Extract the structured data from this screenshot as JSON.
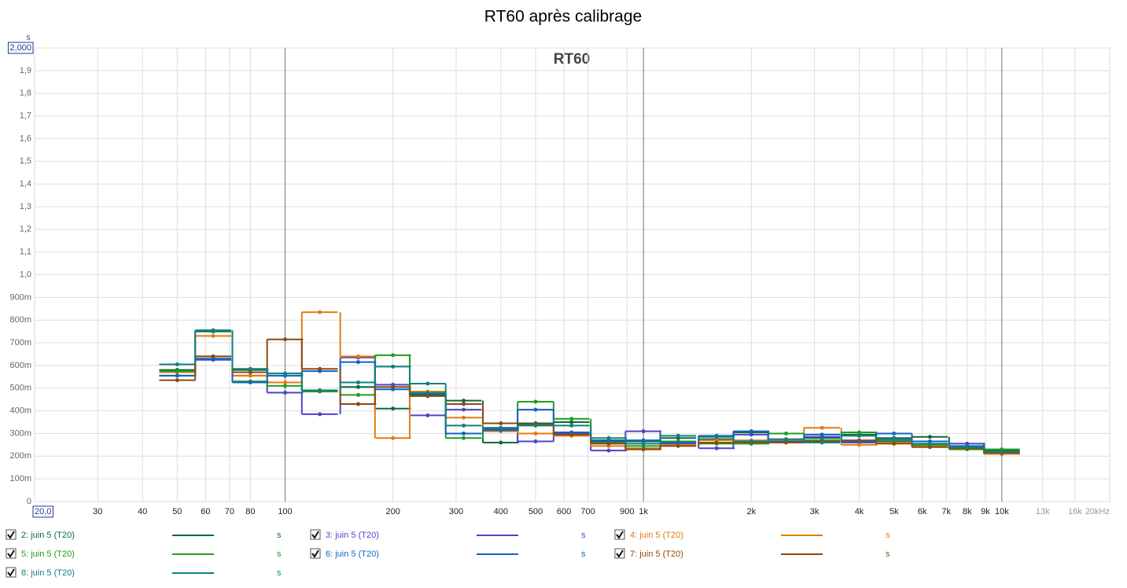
{
  "chart_data": {
    "type": "step-line",
    "title": "RT60 après calibrage",
    "subtitle": "RT60",
    "y_unit": "s",
    "x": [
      50,
      63,
      80,
      100,
      125,
      160,
      200,
      250,
      315,
      400,
      500,
      630,
      800,
      1000,
      1250,
      1600,
      2000,
      2500,
      3150,
      4000,
      5000,
      6300,
      8000,
      10000
    ],
    "xscale": "log",
    "xlim": [
      20,
      20000
    ],
    "xticks": [
      {
        "value": 20,
        "label": "20,0"
      },
      30,
      40,
      50,
      60,
      70,
      80,
      100,
      200,
      300,
      400,
      500,
      600,
      700,
      900,
      {
        "value": 1000,
        "label": "1k"
      },
      {
        "value": 2000,
        "label": "2k"
      },
      {
        "value": 3000,
        "label": "3k"
      },
      {
        "value": 4000,
        "label": "4k"
      },
      {
        "value": 5000,
        "label": "5k"
      },
      {
        "value": 6000,
        "label": "6k"
      },
      {
        "value": 7000,
        "label": "7k"
      },
      {
        "value": 8000,
        "label": "8k"
      },
      {
        "value": 9000,
        "label": "9k"
      },
      {
        "value": 10000,
        "label": "10k"
      },
      {
        "value": 13000,
        "label": "13k"
      },
      {
        "value": 16000,
        "label": "16k"
      },
      {
        "value": 20000,
        "label": "20kHz"
      }
    ],
    "ylim": [
      0,
      2
    ],
    "yticks": [
      0,
      {
        "value": 0.1,
        "label": "100m"
      },
      {
        "value": 0.2,
        "label": "200m"
      },
      {
        "value": 0.3,
        "label": "300m"
      },
      {
        "value": 0.4,
        "label": "400m"
      },
      {
        "value": 0.5,
        "label": "500m"
      },
      {
        "value": 0.6,
        "label": "600m"
      },
      {
        "value": 0.7,
        "label": "700m"
      },
      {
        "value": 0.8,
        "label": "800m"
      },
      {
        "value": 0.9,
        "label": "900m"
      },
      {
        "value": 1.0,
        "label": "1,0"
      },
      {
        "value": 1.1,
        "label": "1,1"
      },
      {
        "value": 1.2,
        "label": "1,2"
      },
      {
        "value": 1.3,
        "label": "1,3"
      },
      {
        "value": 1.4,
        "label": "1,4"
      },
      {
        "value": 1.5,
        "label": "1,5"
      },
      {
        "value": 1.6,
        "label": "1,6"
      },
      {
        "value": 1.7,
        "label": "1,7"
      },
      {
        "value": 1.8,
        "label": "1,8"
      },
      {
        "value": 1.9,
        "label": "1,9"
      },
      {
        "value": 2.0,
        "label": "2,000"
      }
    ],
    "grid": true,
    "series": [
      {
        "name": "2: juin 5 (T20)",
        "unit": "s",
        "color": "#0d6a3a",
        "values": [
          0.58,
          0.75,
          0.58,
          0.555,
          0.49,
          0.505,
          0.41,
          0.47,
          0.445,
          0.26,
          0.345,
          0.35,
          0.27,
          0.265,
          0.28,
          0.275,
          0.305,
          0.27,
          0.28,
          0.295,
          0.28,
          0.285,
          0.24,
          0.225
        ]
      },
      {
        "name": "3: juin 5 (T20)",
        "unit": "s",
        "color": "#4b45c8",
        "values": [
          0.555,
          0.625,
          0.555,
          0.48,
          0.385,
          0.635,
          0.515,
          0.38,
          0.405,
          0.32,
          0.265,
          0.305,
          0.225,
          0.31,
          0.255,
          0.235,
          0.295,
          0.265,
          0.285,
          0.26,
          0.265,
          0.245,
          0.255,
          0.21
        ]
      },
      {
        "name": "4: juin 5 (T20)",
        "unit": "s",
        "color": "#e37b12",
        "values": [
          0.57,
          0.73,
          0.555,
          0.525,
          0.835,
          0.64,
          0.28,
          0.485,
          0.37,
          0.31,
          0.3,
          0.29,
          0.245,
          0.235,
          0.25,
          0.27,
          0.27,
          0.27,
          0.325,
          0.25,
          0.26,
          0.245,
          0.235,
          0.21
        ]
      },
      {
        "name": "5: juin 5 (T20)",
        "unit": "s",
        "color": "#1f9e1f",
        "values": [
          0.575,
          0.64,
          0.53,
          0.51,
          0.485,
          0.47,
          0.645,
          0.48,
          0.28,
          0.325,
          0.44,
          0.365,
          0.26,
          0.245,
          0.265,
          0.255,
          0.255,
          0.3,
          0.27,
          0.305,
          0.27,
          0.25,
          0.23,
          0.23
        ]
      },
      {
        "name": "6: juin 5 (T20)",
        "unit": "s",
        "color": "#1463c2",
        "values": [
          0.555,
          0.63,
          0.525,
          0.555,
          0.575,
          0.615,
          0.495,
          0.475,
          0.3,
          0.315,
          0.405,
          0.3,
          0.265,
          0.27,
          0.26,
          0.29,
          0.31,
          0.265,
          0.295,
          0.265,
          0.3,
          0.265,
          0.245,
          0.215
        ]
      },
      {
        "name": "7: juin 5 (T20)",
        "unit": "s",
        "color": "#8b4a12",
        "values": [
          0.535,
          0.64,
          0.57,
          0.715,
          0.585,
          0.43,
          0.505,
          0.465,
          0.43,
          0.345,
          0.34,
          0.295,
          0.255,
          0.23,
          0.245,
          0.26,
          0.26,
          0.26,
          0.265,
          0.27,
          0.255,
          0.24,
          0.235,
          0.215
        ]
      },
      {
        "name": "8: juin 5 (T20)",
        "unit": "s",
        "color": "#108080",
        "values": [
          0.605,
          0.755,
          0.585,
          0.565,
          0.49,
          0.525,
          0.595,
          0.52,
          0.335,
          0.325,
          0.335,
          0.335,
          0.28,
          0.255,
          0.29,
          0.285,
          0.265,
          0.275,
          0.26,
          0.29,
          0.275,
          0.255,
          0.24,
          0.22
        ]
      }
    ]
  }
}
